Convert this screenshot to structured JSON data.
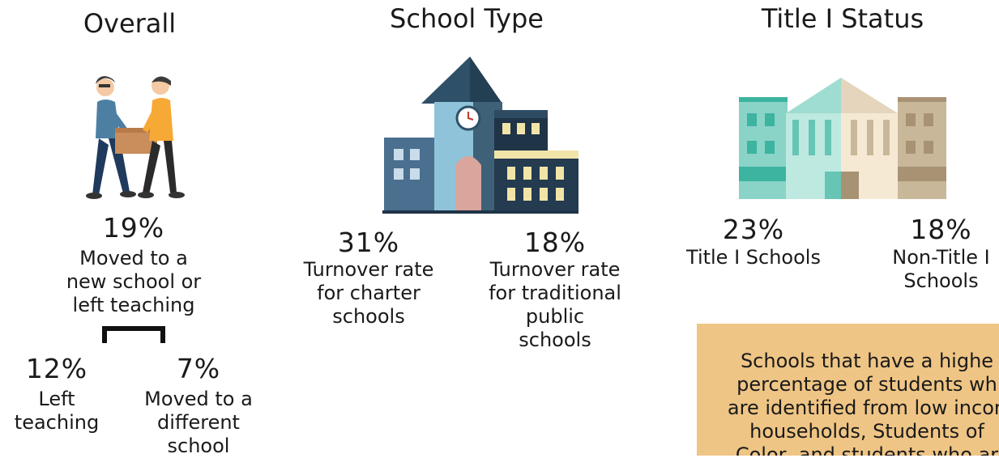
{
  "overall": {
    "title": "Overall",
    "main": {
      "pct": "19%",
      "lines": [
        "Moved to a",
        "new school or",
        "left teaching"
      ]
    },
    "left": {
      "pct": "12%",
      "lines": [
        "Left",
        "teaching"
      ]
    },
    "right": {
      "pct": "7%",
      "lines": [
        "Moved to a",
        "different",
        "school"
      ]
    }
  },
  "school_type": {
    "title": "School Type",
    "charter": {
      "pct": "31%",
      "lines": [
        "Turnover rate",
        "for charter",
        "schools"
      ]
    },
    "traditional": {
      "pct": "18%",
      "lines": [
        "Turnover rate",
        "for traditional",
        "public",
        "schools"
      ]
    }
  },
  "title_status": {
    "title": "Title I Status",
    "title1": {
      "pct": "23%",
      "lines": [
        "Title I Schools"
      ]
    },
    "non_title1": {
      "pct": "18%",
      "lines": [
        "Non-Title I",
        "Schools"
      ]
    },
    "callout_lines": [
      "Schools that have a highe",
      "percentage of students wh",
      "are identified from low incon",
      "households, Students of",
      "Color, and students who ar"
    ]
  },
  "colors": {
    "callout_bg": "#efc585",
    "orange": "#f7a935",
    "blue_shirt": "#4d7fa3",
    "teal": "#3cb4a0",
    "tan": "#c9b79a"
  },
  "icons": [
    "people-carrying-box-icon",
    "school-building-icon",
    "title-i-school-building-icon",
    "bracket-icon"
  ]
}
